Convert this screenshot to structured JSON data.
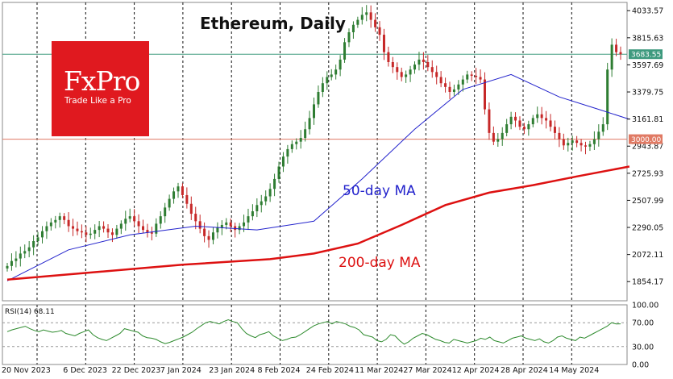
{
  "chart_data": [
    {
      "type": "candlestick",
      "title": "Ethereum, Daily",
      "ylim": [
        1700,
        4100
      ],
      "y_ticks": [
        "4033.57",
        "3815.63",
        "3597.69",
        "3379.75",
        "3161.81",
        "2943.87",
        "2725.93",
        "2507.99",
        "2290.05",
        "2072.11",
        "1854.17"
      ],
      "x_ticks": [
        "20 Nov 2023",
        "6 Dec 2023",
        "22 Dec 2023",
        "7 Jan 2024",
        "23 Jan 2024",
        "8 Feb 2024",
        "24 Feb 2024",
        "11 Mar 2024",
        "27 Mar 2024",
        "12 Apr 2024",
        "28 Apr 2024",
        "14 May 2024"
      ],
      "current_price_label": "3683.55",
      "current_price": 3683.55,
      "level_line_label": "3000.00",
      "level_line": 3000,
      "close_path": [
        1980,
        2020,
        2040,
        2080,
        2100,
        2130,
        2180,
        2210,
        2260,
        2300,
        2330,
        2350,
        2380,
        2350,
        2300,
        2280,
        2260,
        2250,
        2230,
        2240,
        2270,
        2300,
        2280,
        2250,
        2230,
        2280,
        2320,
        2360,
        2380,
        2340,
        2300,
        2270,
        2250,
        2240,
        2320,
        2380,
        2450,
        2520,
        2580,
        2620,
        2550,
        2480,
        2400,
        2340,
        2280,
        2220,
        2190,
        2250,
        2290,
        2310,
        2330,
        2300,
        2270,
        2300,
        2330,
        2380,
        2420,
        2470,
        2500,
        2540,
        2600,
        2680,
        2780,
        2860,
        2920,
        2960,
        2980,
        3010,
        3080,
        3170,
        3280,
        3380,
        3450,
        3500,
        3520,
        3560,
        3640,
        3780,
        3860,
        3920,
        3960,
        4000,
        4020,
        3960,
        3900,
        3840,
        3700,
        3620,
        3580,
        3540,
        3500,
        3520,
        3560,
        3600,
        3640,
        3620,
        3580,
        3540,
        3500,
        3450,
        3420,
        3380,
        3400,
        3440,
        3480,
        3520,
        3510,
        3500,
        3480,
        3240,
        3050,
        2980,
        3000,
        3050,
        3120,
        3180,
        3150,
        3100,
        3080,
        3120,
        3170,
        3200,
        3170,
        3150,
        3100,
        3050,
        3000,
        2950,
        2970,
        2990,
        2970,
        2950,
        2940,
        2960,
        3000,
        3060,
        3120,
        3560,
        3760,
        3700,
        3683.55
      ],
      "series": [
        {
          "name": "50-day MA",
          "color": "#2222cc",
          "x": [
            0,
            14,
            28,
            43,
            57,
            70,
            81,
            93,
            104,
            115,
            126,
            135,
            142
          ],
          "y": [
            1860,
            2110,
            2230,
            2300,
            2270,
            2340,
            2680,
            3080,
            3400,
            3520,
            3340,
            3240,
            3160
          ]
        },
        {
          "name": "200-day MA",
          "color": "#dd1111",
          "x": [
            0,
            20,
            40,
            60,
            70,
            80,
            90,
            100,
            110,
            120,
            130,
            142
          ],
          "y": [
            1870,
            1930,
            1990,
            2035,
            2080,
            2160,
            2310,
            2470,
            2570,
            2630,
            2700,
            2780
          ]
        }
      ],
      "annotations": [
        "50-day MA",
        "200-day MA"
      ]
    },
    {
      "type": "line",
      "label": "RSI(14) 68.11",
      "value": 68.11,
      "ylim": [
        0,
        100
      ],
      "y_ticks": [
        "100.00",
        "70.00",
        "30.00",
        "0.00"
      ],
      "levels": [
        70,
        30
      ],
      "values": [
        55,
        58,
        60,
        62,
        64,
        60,
        57,
        55,
        58,
        56,
        54,
        55,
        57,
        52,
        50,
        48,
        52,
        55,
        58,
        50,
        45,
        42,
        40,
        44,
        48,
        52,
        60,
        58,
        56,
        54,
        48,
        45,
        44,
        42,
        38,
        35,
        37,
        40,
        43,
        46,
        50,
        54,
        60,
        65,
        70,
        72,
        70,
        68,
        72,
        75,
        72,
        70,
        60,
        52,
        48,
        45,
        50,
        52,
        55,
        48,
        44,
        40,
        42,
        45,
        46,
        50,
        55,
        60,
        65,
        68,
        70,
        72,
        68,
        72,
        70,
        68,
        64,
        62,
        58,
        50,
        48,
        46,
        40,
        38,
        42,
        50,
        48,
        40,
        34,
        38,
        44,
        48,
        52,
        50,
        46,
        42,
        40,
        37,
        36,
        42,
        40,
        38,
        36,
        38,
        40,
        44,
        42,
        46,
        40,
        38,
        36,
        40,
        44,
        46,
        48,
        44,
        42,
        40,
        43,
        38,
        36,
        40,
        46,
        48,
        44,
        42,
        40,
        46,
        44,
        48,
        52,
        56,
        60,
        64,
        70,
        68,
        68.11
      ]
    }
  ],
  "logo": {
    "brand": "FxPro",
    "tagline": "Trade Like a Pro"
  },
  "colors": {
    "up": "#2e7d32",
    "down": "#c62828",
    "ma50": "#2222cc",
    "ma200": "#dd1111",
    "level": "#e07a64",
    "current": "#3e9a7e",
    "logo_bg": "#e0191f"
  }
}
